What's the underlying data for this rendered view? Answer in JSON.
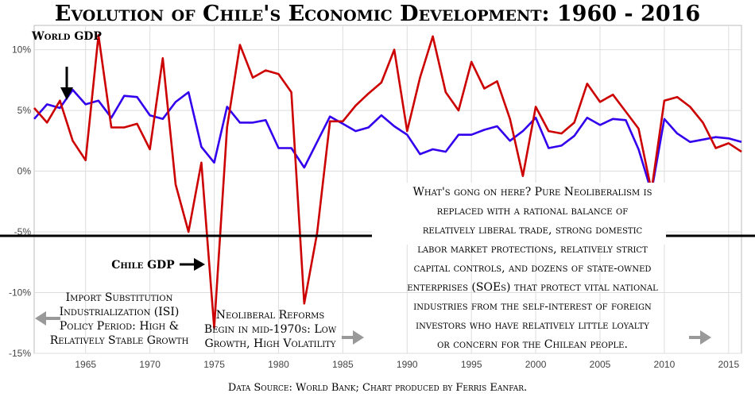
{
  "chart_data": {
    "type": "line",
    "title": "Evolution of Chile's Economic Development: 1960 - 2016",
    "xlabel": "",
    "ylabel": "",
    "xlim": [
      1961,
      2016
    ],
    "ylim": [
      -15,
      12
    ],
    "x_ticks": [
      1965,
      1970,
      1975,
      1980,
      1985,
      1990,
      1995,
      2000,
      2005,
      2010,
      2015
    ],
    "y_ticks": [
      10,
      5,
      0,
      -5,
      -10,
      -15
    ],
    "y_tick_labels": [
      "10%",
      "5%",
      "0%",
      "-5%",
      "-10%",
      "-15%"
    ],
    "grid": true,
    "x": [
      1961,
      1962,
      1963,
      1964,
      1965,
      1966,
      1967,
      1968,
      1969,
      1970,
      1971,
      1972,
      1973,
      1974,
      1975,
      1976,
      1977,
      1978,
      1979,
      1980,
      1981,
      1982,
      1983,
      1984,
      1985,
      1986,
      1987,
      1988,
      1989,
      1990,
      1991,
      1992,
      1993,
      1994,
      1995,
      1996,
      1997,
      1998,
      1999,
      2000,
      2001,
      2002,
      2003,
      2004,
      2005,
      2006,
      2007,
      2008,
      2009,
      2010,
      2011,
      2012,
      2013,
      2014,
      2015,
      2016
    ],
    "series": [
      {
        "name": "Chile GDP",
        "color": "#cc0000",
        "values": [
          5.2,
          4.0,
          5.8,
          2.5,
          0.9,
          11.2,
          3.6,
          3.6,
          3.9,
          1.8,
          9.3,
          -1.1,
          -5.0,
          0.7,
          -12.9,
          3.6,
          10.4,
          7.7,
          8.3,
          8.0,
          6.5,
          -10.9,
          -5.1,
          4.1,
          4.1,
          5.4,
          6.4,
          7.3,
          10.0,
          3.3,
          7.7,
          11.1,
          6.5,
          5.0,
          9.0,
          6.8,
          7.4,
          4.3,
          -0.4,
          5.3,
          3.3,
          3.1,
          4.0,
          7.2,
          5.7,
          6.3,
          4.9,
          3.5,
          -1.6,
          5.8,
          6.1,
          5.3,
          4.0,
          1.9,
          2.3,
          1.6
        ]
      },
      {
        "name": "World GDP",
        "color": "#3300ee",
        "values": [
          4.3,
          5.5,
          5.2,
          6.7,
          5.5,
          5.8,
          4.4,
          6.2,
          6.1,
          4.6,
          4.3,
          5.7,
          6.5,
          2.0,
          0.7,
          5.3,
          4.0,
          4.0,
          4.2,
          1.9,
          1.9,
          0.3,
          2.4,
          4.5,
          3.9,
          3.3,
          3.6,
          4.6,
          3.7,
          3.0,
          1.4,
          1.8,
          1.6,
          3.0,
          3.0,
          3.4,
          3.7,
          2.5,
          3.3,
          4.4,
          1.9,
          2.1,
          2.9,
          4.4,
          3.8,
          4.3,
          4.2,
          1.8,
          -1.7,
          4.3,
          3.1,
          2.4,
          2.6,
          2.8,
          2.7,
          2.4
        ]
      }
    ],
    "annotations": {
      "world_gdp": "World GDP",
      "chile_gdp": "Chile GDP",
      "isi_1": "Import Substitution",
      "isi_2": "Industrialization (ISI)",
      "isi_3": "Policy Period: High &",
      "isi_4": "Relatively Stable Growth",
      "neo_1": "Neoliberal Reforms",
      "neo_2": "Begin in mid-1970s: Low",
      "neo_3": "Growth, High Volatility",
      "box_1": "What's gong on here? Pure Neoliberalism is",
      "box_2": "replaced with a rational balance of",
      "box_3": "relatively liberal trade, strong domestic",
      "box_4": "labor market protections, relatively strict",
      "box_5": "capital controls, and dozens of state-owned",
      "box_6": "enterprises (SOEs) that protect vital national",
      "box_7": "industries from the self-interest of foreign",
      "box_8": "investors who have relatively little loyalty",
      "box_9": "or concern for the Chilean people."
    },
    "source": "Data Source: World Bank; Chart produced by Ferris Eanfar."
  }
}
